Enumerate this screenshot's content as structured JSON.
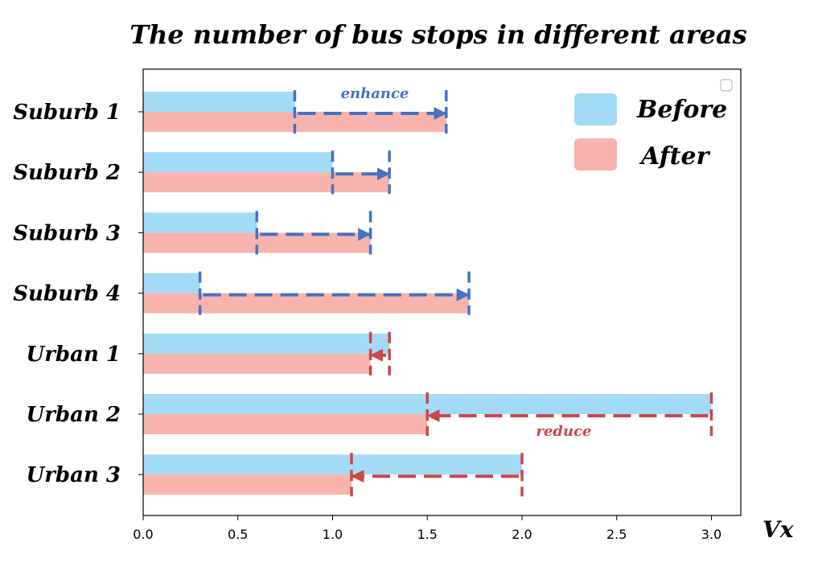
{
  "chart_data": {
    "type": "bar",
    "orientation": "horizontal",
    "title": "The number of bus stops in different areas",
    "xlabel": "Vx",
    "ylabel": "",
    "xlim": [
      0,
      3.15
    ],
    "xticks": [
      "0.0",
      "0.5",
      "1.0",
      "1.5",
      "2.0",
      "2.5",
      "3.0"
    ],
    "categories": [
      "Suburb 1",
      "Suburb 2",
      "Suburb 3",
      "Suburb 4",
      "Urban 1",
      "Urban 2",
      "Urban 3"
    ],
    "series": [
      {
        "name": "Before",
        "color": "#a3daf6",
        "values": [
          0.8,
          1.0,
          0.6,
          0.3,
          1.3,
          3.0,
          2.0
        ]
      },
      {
        "name": "After",
        "color": "#f7b3ac",
        "values": [
          1.6,
          1.3,
          1.2,
          1.72,
          1.2,
          1.5,
          1.1
        ]
      }
    ],
    "annotations": [
      {
        "text": "enhance",
        "color": "#4472c4"
      },
      {
        "text": "reduce",
        "color": "#c9464a"
      }
    ],
    "legend_position": "top-right",
    "grid": false
  }
}
